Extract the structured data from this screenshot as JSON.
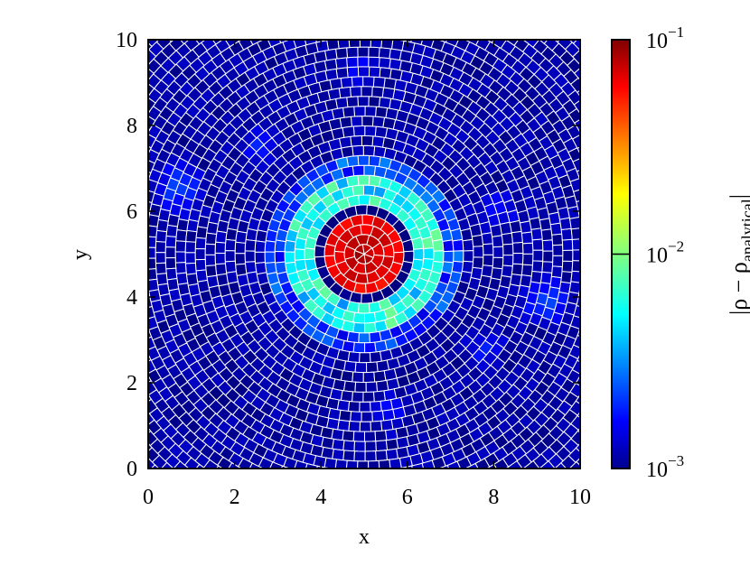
{
  "chart_data": {
    "type": "heatmap",
    "title": "",
    "xlabel": "x",
    "ylabel": "y",
    "xlim": [
      0,
      10
    ],
    "ylim": [
      0,
      10
    ],
    "x_ticks": [
      0,
      2,
      4,
      6,
      8,
      10
    ],
    "y_ticks": [
      0,
      2,
      4,
      6,
      8,
      10
    ],
    "x_tick_labels": [
      "0",
      "2",
      "4",
      "6",
      "8",
      "10"
    ],
    "y_tick_labels": [
      "0",
      "2",
      "4",
      "6",
      "8",
      "10"
    ],
    "grid": false,
    "mesh": "unstructured polygonal cells arranged in concentric rings around (5, 5), white cell edges",
    "colormap": "jet",
    "color_scale": "log",
    "colorbar": {
      "label_main": "|ρ − ρ",
      "label_subscript": "analytical",
      "label_close": "|",
      "range": [
        0.001,
        0.1
      ],
      "ticks": [
        0.001,
        0.01,
        0.1
      ],
      "tick_labels": [
        {
          "base": "10",
          "exp": "−3",
          "value": 0.001
        },
        {
          "base": "10",
          "exp": "−2",
          "value": 0.01
        },
        {
          "base": "10",
          "exp": "−1",
          "value": 0.1
        }
      ]
    },
    "features": [
      {
        "name": "core",
        "center": [
          5,
          5
        ],
        "radius": 0.9,
        "value": 0.08
      },
      {
        "name": "dark-ring",
        "center": [
          5,
          5
        ],
        "radius": 1.25,
        "value": 0.001
      },
      {
        "name": "cyan-ring",
        "center": [
          5,
          5
        ],
        "radius": 1.75,
        "value": 0.006
      },
      {
        "name": "outer-ring",
        "center": [
          5,
          5
        ],
        "radius": 2.3,
        "value": 0.0025
      },
      {
        "name": "blob",
        "center": [
          0.7,
          6.5
        ],
        "value": 0.0025
      },
      {
        "name": "blob",
        "center": [
          2.6,
          7.5
        ],
        "value": 0.002
      },
      {
        "name": "blob",
        "center": [
          4.9,
          9.3
        ],
        "value": 0.0018
      },
      {
        "name": "blob",
        "center": [
          8.1,
          6.0
        ],
        "value": 0.002
      },
      {
        "name": "blob",
        "center": [
          9.2,
          3.9
        ],
        "value": 0.0025
      },
      {
        "name": "blob",
        "center": [
          7.8,
          2.8
        ],
        "value": 0.002
      },
      {
        "name": "blob",
        "center": [
          5.6,
          1.3
        ],
        "value": 0.002
      },
      {
        "name": "blob",
        "center": [
          1.6,
          9.6
        ],
        "value": 0.0015
      }
    ]
  }
}
